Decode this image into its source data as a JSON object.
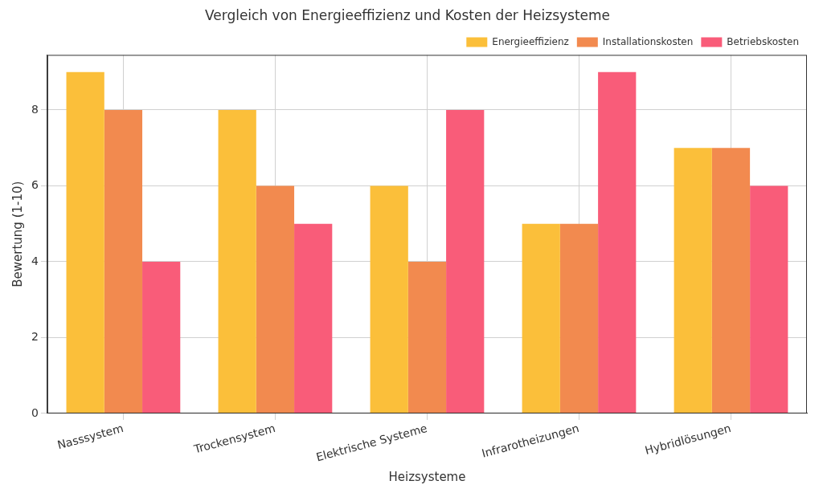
{
  "chart_data": {
    "type": "bar",
    "title": "Vergleich von Energieeffizienz und Kosten der Heizsysteme",
    "x_label": "Heizsysteme",
    "y_label": "Bewertung (1-10)",
    "categories": [
      "Nasssystem",
      "Trockensystem",
      "Elektrische Systeme",
      "Infrarotheizungen",
      "Hybridlösungen"
    ],
    "series": [
      {
        "name": "Energieeffizienz",
        "color": "#fbbf3a",
        "values": [
          9,
          8,
          6,
          5,
          7
        ]
      },
      {
        "name": "Installationskosten",
        "color": "#f28a4f",
        "values": [
          8,
          6,
          4,
          5,
          7
        ]
      },
      {
        "name": "Betriebskosten",
        "color": "#f95c79",
        "values": [
          4,
          5,
          8,
          9,
          6
        ]
      }
    ],
    "ylim": [
      0,
      9.45
    ],
    "yticks": [
      0,
      2,
      4,
      6,
      8
    ],
    "grid": true,
    "legend": "upper right"
  }
}
